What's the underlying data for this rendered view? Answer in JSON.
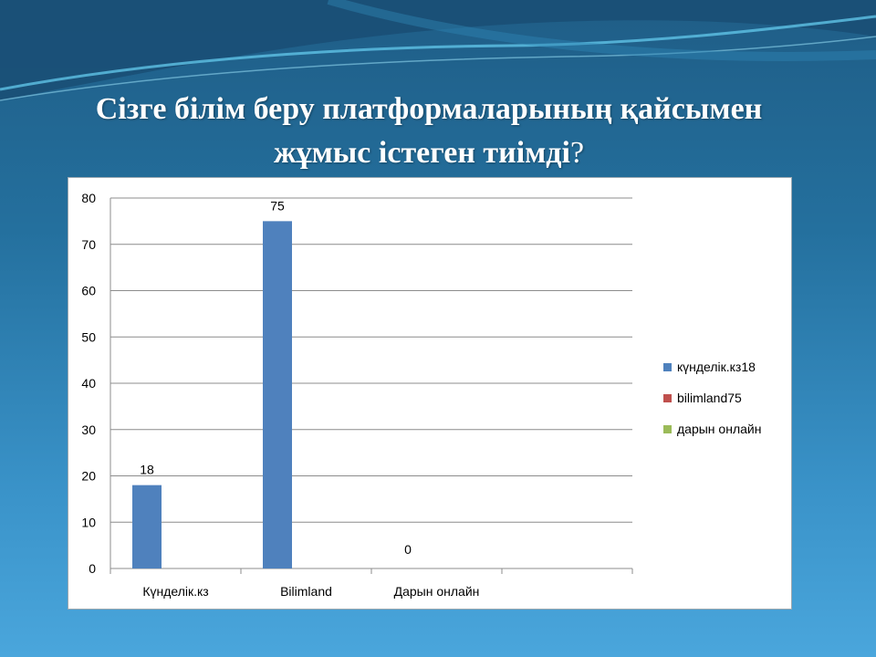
{
  "slide": {
    "title_main": "Сізге білім беру платформаларының қайсымен жұмыс істеген тиімді",
    "title_q": "?"
  },
  "colors": {
    "series1": "#4f81bd",
    "series2": "#c0504d",
    "series3": "#9bbb59",
    "grid": "#8c8c8c"
  },
  "chart_data": {
    "type": "bar",
    "categories": [
      "Күнделік.кз",
      "Bilimland",
      "Дарын онлайн"
    ],
    "values": [
      18,
      75,
      0
    ],
    "data_labels": [
      "18",
      "75",
      "0"
    ],
    "ylim": [
      0,
      80
    ],
    "yticks": [
      0,
      10,
      20,
      30,
      40,
      50,
      60,
      70,
      80
    ],
    "grid": true,
    "legend_position": "right",
    "legend": [
      "күнделік.кз18",
      "bilimland75",
      "дарын онлайн"
    ]
  }
}
